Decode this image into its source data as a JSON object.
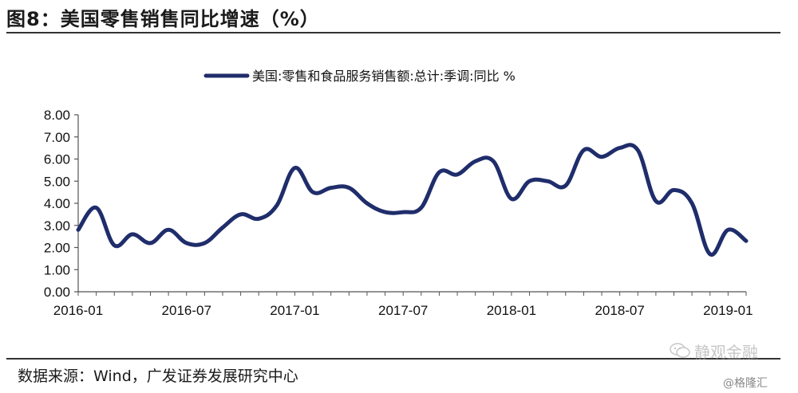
{
  "header": {
    "title": "图8：美国零售销售同比增速（%）"
  },
  "footer": {
    "source": "数据来源：Wind，广发证券发展研究中心"
  },
  "watermarks": {
    "primary": "静观金融",
    "secondary": "@格隆汇",
    "icon": "wechat-icon"
  },
  "colors": {
    "series": "#1f2d6b",
    "text": "#111111",
    "rule": "#333333"
  },
  "chart_data": {
    "type": "line",
    "legend": "top-center",
    "grid": false,
    "series": [
      {
        "name": "美国:零售和食品服务销售额:总计:季调:同比 %",
        "points": [
          [
            "2016-01",
            2.8
          ],
          [
            "2016-02",
            3.8
          ],
          [
            "2016-03",
            2.1
          ],
          [
            "2016-04",
            2.6
          ],
          [
            "2016-05",
            2.2
          ],
          [
            "2016-06",
            2.8
          ],
          [
            "2016-07",
            2.2
          ],
          [
            "2016-08",
            2.2
          ],
          [
            "2016-09",
            2.9
          ],
          [
            "2016-10",
            3.5
          ],
          [
            "2016-11",
            3.3
          ],
          [
            "2016-12",
            3.9
          ],
          [
            "2017-01",
            5.6
          ],
          [
            "2017-02",
            4.5
          ],
          [
            "2017-03",
            4.7
          ],
          [
            "2017-04",
            4.7
          ],
          [
            "2017-05",
            4.0
          ],
          [
            "2017-06",
            3.6
          ],
          [
            "2017-07",
            3.6
          ],
          [
            "2017-08",
            3.8
          ],
          [
            "2017-09",
            5.4
          ],
          [
            "2017-10",
            5.3
          ],
          [
            "2017-11",
            5.9
          ],
          [
            "2017-12",
            5.9
          ],
          [
            "2018-01",
            4.2
          ],
          [
            "2018-02",
            5.0
          ],
          [
            "2018-03",
            5.0
          ],
          [
            "2018-04",
            4.8
          ],
          [
            "2018-05",
            6.4
          ],
          [
            "2018-06",
            6.1
          ],
          [
            "2018-07",
            6.5
          ],
          [
            "2018-08",
            6.4
          ],
          [
            "2018-09",
            4.1
          ],
          [
            "2018-10",
            4.6
          ],
          [
            "2018-11",
            4.0
          ],
          [
            "2018-12",
            1.7
          ],
          [
            "2019-01",
            2.8
          ],
          [
            "2019-02",
            2.3
          ]
        ]
      }
    ],
    "y_ticks": [
      "0.00",
      "1.00",
      "2.00",
      "3.00",
      "4.00",
      "5.00",
      "6.00",
      "7.00",
      "8.00"
    ],
    "x_ticks": [
      "2016-01",
      "2016-07",
      "2017-01",
      "2017-07",
      "2018-01",
      "2018-07",
      "2019-01"
    ],
    "ylim": [
      0,
      8
    ],
    "xlim": [
      "2016-01",
      "2019-02"
    ]
  }
}
